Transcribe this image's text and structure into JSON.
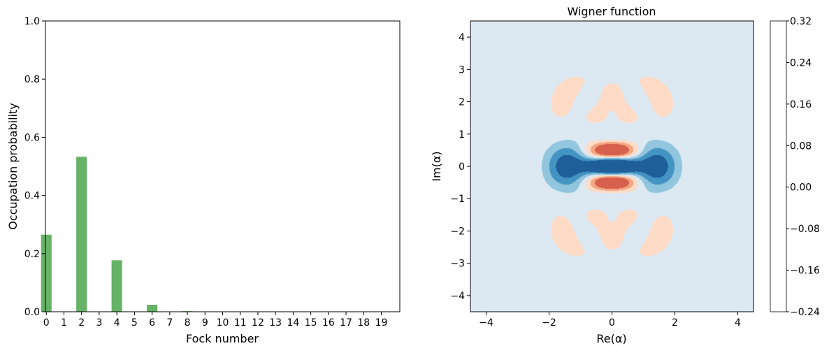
{
  "chart_data": [
    {
      "type": "bar",
      "xlabel": "Fock number",
      "ylabel": "Occupation probability",
      "ylim": [
        0,
        1.0
      ],
      "yticks": [
        "0.0",
        "0.2",
        "0.4",
        "0.6",
        "0.8",
        "1.0"
      ],
      "categories": [
        "0",
        "1",
        "2",
        "3",
        "4",
        "5",
        "6",
        "7",
        "8",
        "9",
        "10",
        "11",
        "12",
        "13",
        "14",
        "15",
        "16",
        "17",
        "18",
        "19"
      ],
      "values": [
        0.265,
        0,
        0.533,
        0,
        0.177,
        0,
        0.024,
        0,
        0.002,
        0,
        0,
        0,
        0,
        0,
        0,
        0,
        0,
        0,
        0,
        0
      ],
      "bar_color": "#66b266"
    },
    {
      "type": "heatmap",
      "title": "Wigner function",
      "xlabel": "Re(α)",
      "ylabel": "Im(α)",
      "xlim": [
        -4.5,
        4.5
      ],
      "ylim": [
        -4.5,
        4.5
      ],
      "xticks": [
        "−4",
        "−2",
        "0",
        "2",
        "4"
      ],
      "yticks": [
        "−4",
        "−3",
        "−2",
        "−1",
        "0",
        "1",
        "2",
        "3",
        "4"
      ],
      "colorbar": {
        "levels": [
          -0.24,
          -0.16,
          -0.08,
          0.0,
          0.08,
          0.16,
          0.24,
          0.32
        ],
        "tick_labels": [
          "−0.24",
          "−0.16",
          "−0.08",
          "0.00",
          "0.08",
          "0.16",
          "0.24",
          "0.32"
        ],
        "colors": [
          "#d6604d",
          "#f4a582",
          "#fddbc7",
          "#dce9f3",
          "#92c5de",
          "#4393c3",
          "#1f5f99"
        ]
      },
      "state_probabilities": {
        "n0": 0.265,
        "n2": 0.533,
        "n4": 0.177,
        "n6": 0.024,
        "n8": 0.002
      }
    }
  ]
}
